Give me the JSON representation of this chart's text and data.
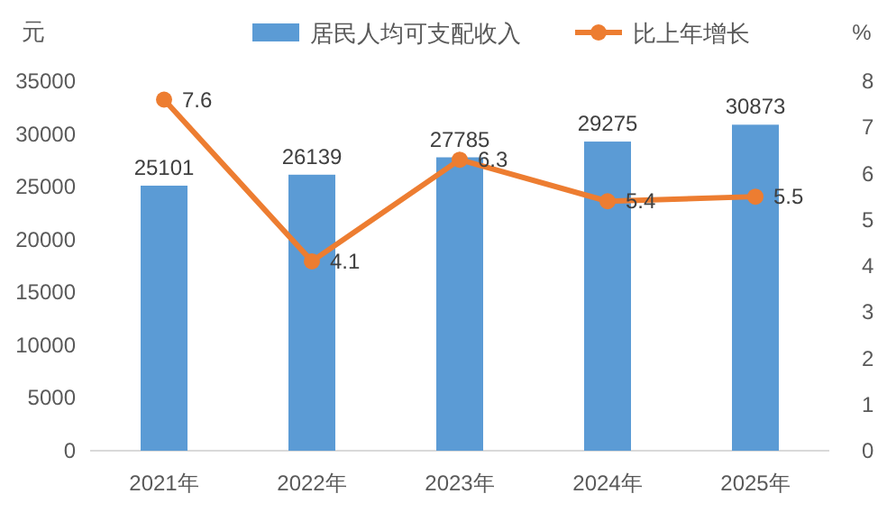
{
  "chart_data": {
    "type": "bar",
    "ylabel": "元",
    "y2label": "%",
    "categories": [
      "2021年",
      "2022年",
      "2023年",
      "2024年",
      "2025年"
    ],
    "series": [
      {
        "name": "居民人均可支配收入",
        "color": "#5b9bd5",
        "values": [
          25101,
          26139,
          27785,
          29275,
          30873
        ]
      },
      {
        "name": "比上年增长",
        "type": "line",
        "axis": "y2",
        "color": "#ed7d31",
        "values": [
          7.6,
          4.1,
          6.3,
          5.4,
          5.5
        ]
      }
    ],
    "ylim": [
      0,
      35000
    ],
    "yticks": [
      0,
      5000,
      10000,
      15000,
      20000,
      25000,
      30000,
      35000
    ],
    "y2lim": [
      0,
      8
    ],
    "y2ticks": [
      0,
      1,
      2,
      3,
      4,
      5,
      6,
      7,
      8
    ],
    "legend": "top",
    "data_labels": true,
    "marker": "circle"
  }
}
